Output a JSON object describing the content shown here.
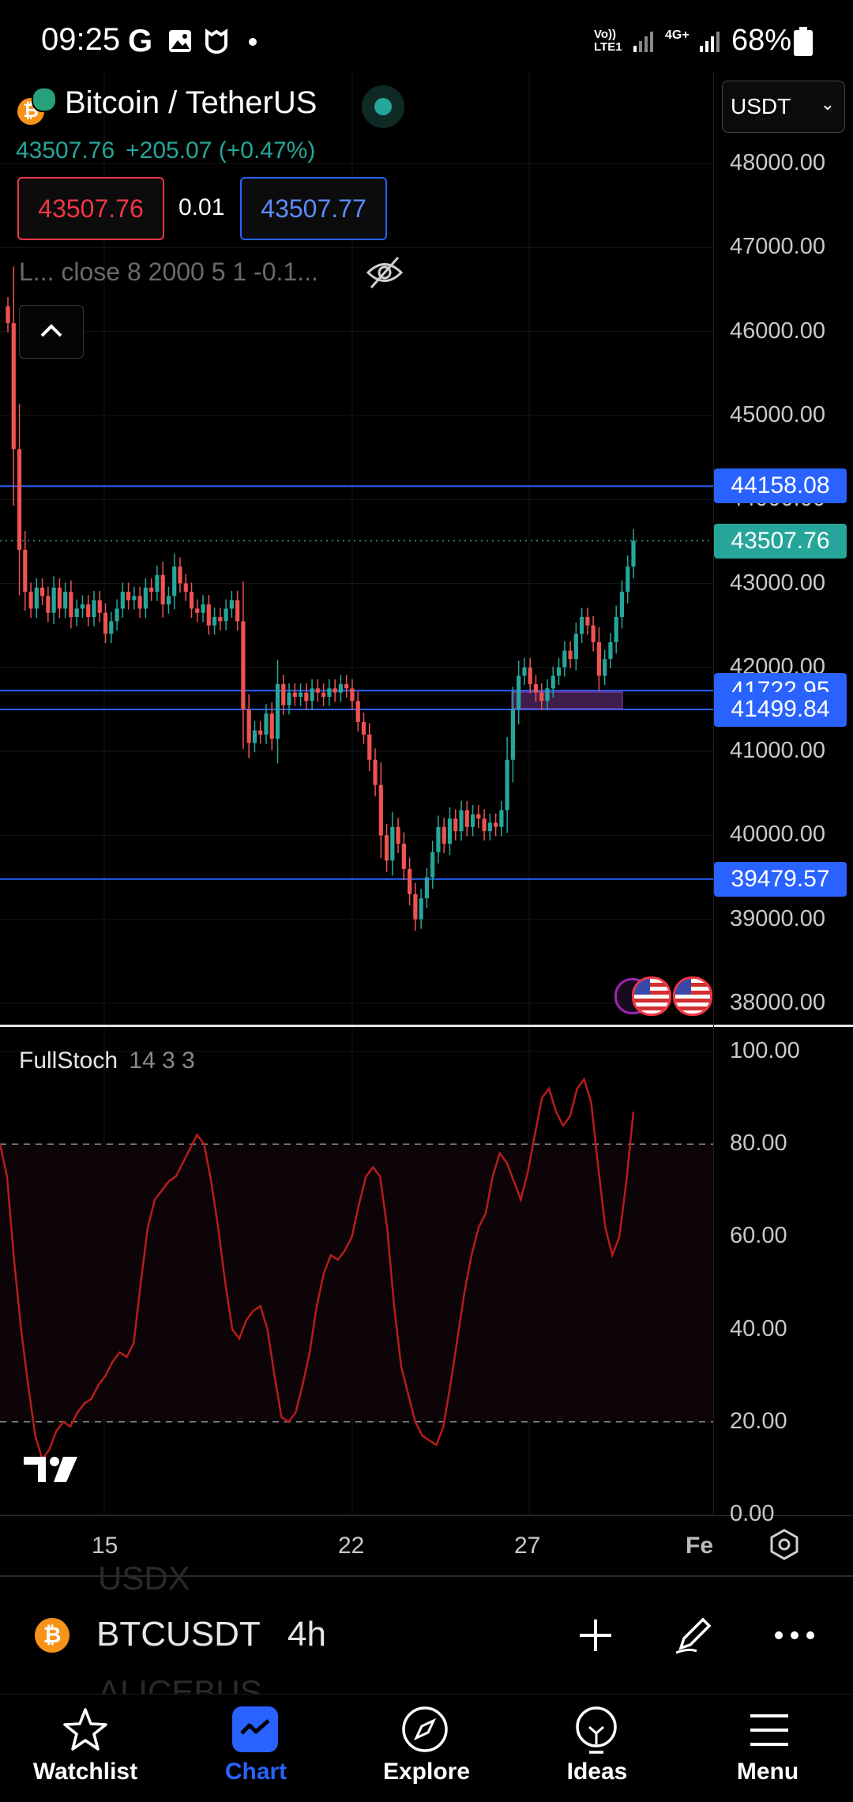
{
  "status_bar": {
    "time": "09:25",
    "network_label": "Vo)) LTE1",
    "network2_label": "4G+",
    "battery": "68%"
  },
  "header": {
    "pair": "Bitcoin / TetherUS",
    "price": "43507.76",
    "change": "+205.07 (+0.47%)",
    "sell_price": "43507.76",
    "spread": "0.01",
    "buy_price": "43507.77",
    "indicator_summary": "L... close 8 2000 5 1 -0.1...",
    "currency": "USDT"
  },
  "price_axis": {
    "labels": [
      "48000.00",
      "47000.00",
      "46000.00",
      "45000.00",
      "44000.00",
      "43000.00",
      "42000.00",
      "41000.00",
      "40000.00",
      "39000.00",
      "38000.00"
    ],
    "tags": [
      {
        "value": "44158.08",
        "color": "#2962ff"
      },
      {
        "value": "43507.76",
        "color": "#26a69a"
      },
      {
        "value": "41722.95",
        "color": "#2962ff"
      },
      {
        "value": "41499.84",
        "color": "#2962ff"
      },
      {
        "value": "39479.57",
        "color": "#2962ff"
      }
    ]
  },
  "stoch": {
    "name": "FullStoch",
    "params": "14 3 3",
    "labels": [
      "100.00",
      "80.00",
      "60.00",
      "40.00",
      "20.00",
      "0.00"
    ]
  },
  "time_axis": {
    "labels": [
      "15",
      "22",
      "27",
      "Fe"
    ]
  },
  "symbol_bar": {
    "symbol": "BTCUSDT",
    "interval": "4h",
    "ghost_above": "USDX",
    "ghost_below": "ALICEBUS"
  },
  "nav": {
    "items": [
      {
        "label": "Watchlist",
        "icon": "star-icon",
        "active": false
      },
      {
        "label": "Chart",
        "icon": "chart-icon",
        "active": true
      },
      {
        "label": "Explore",
        "icon": "compass-icon",
        "active": false
      },
      {
        "label": "Ideas",
        "icon": "lightbulb-icon",
        "active": false
      },
      {
        "label": "Menu",
        "icon": "menu-icon",
        "active": false
      }
    ]
  },
  "colors": {
    "up": "#26a69a",
    "down": "#ef5350",
    "accent": "#2962ff",
    "stoch_line": "#b71c1c"
  },
  "chart_data": [
    {
      "type": "candlestick",
      "title": "BTCUSDT 4h",
      "ylim": [
        37800,
        48400
      ],
      "x_ticks": [
        "15",
        "22",
        "27",
        "Fe"
      ],
      "horizontal_lines": [
        44158.08,
        41722.95,
        41499.84,
        39479.57
      ],
      "last_price": 43507.76,
      "closes": [
        46100,
        44600,
        43400,
        42900,
        42700,
        42950,
        42850,
        42650,
        42950,
        42700,
        42900,
        42600,
        42700,
        42750,
        42600,
        42800,
        42650,
        42400,
        42550,
        42700,
        42900,
        42800,
        42850,
        42700,
        42950,
        42900,
        43100,
        42750,
        42850,
        43200,
        43000,
        42900,
        42700,
        42650,
        42750,
        42500,
        42600,
        42550,
        42700,
        42800,
        42550,
        41500,
        41100,
        41250,
        41200,
        41450,
        41150,
        41800,
        41550,
        41700,
        41650,
        41700,
        41600,
        41750,
        41700,
        41650,
        41750,
        41700,
        41800,
        41750,
        41600,
        41350,
        41200,
        40900,
        40600,
        40000,
        39700,
        40100,
        39900,
        39600,
        39300,
        39000,
        39250,
        39500,
        39800,
        40100,
        39900,
        40200,
        40050,
        40300,
        40100,
        40250,
        40200,
        40050,
        40150,
        40100,
        40300,
        40900,
        41500,
        41900,
        42000,
        41800,
        41700,
        41600,
        41750,
        41900,
        42000,
        42200,
        42100,
        42400,
        42600,
        42500,
        42300,
        41900,
        42100,
        42300,
        42600,
        42900,
        43200,
        43507.76
      ]
    },
    {
      "type": "line",
      "title": "FullStoch 14 3 3",
      "ylim": [
        0,
        100
      ],
      "reference_lines": [
        80,
        20
      ],
      "values": [
        80,
        73,
        55,
        40,
        28,
        17,
        12,
        14,
        18,
        20,
        19,
        22,
        24,
        25,
        28,
        30,
        33,
        35,
        34,
        37,
        50,
        62,
        68,
        70,
        72,
        73,
        76,
        79,
        82,
        80,
        72,
        62,
        50,
        40,
        38,
        42,
        44,
        45,
        40,
        30,
        21,
        20,
        22,
        28,
        35,
        45,
        52,
        56,
        55,
        57,
        60,
        67,
        73,
        75,
        73,
        62,
        45,
        32,
        26,
        20,
        17,
        16,
        15,
        19,
        28,
        38,
        48,
        56,
        62,
        65,
        73,
        78,
        76,
        72,
        68,
        74,
        82,
        90,
        92,
        87,
        84,
        86,
        92,
        94,
        89,
        75,
        62,
        56,
        60,
        72,
        87
      ]
    }
  ]
}
